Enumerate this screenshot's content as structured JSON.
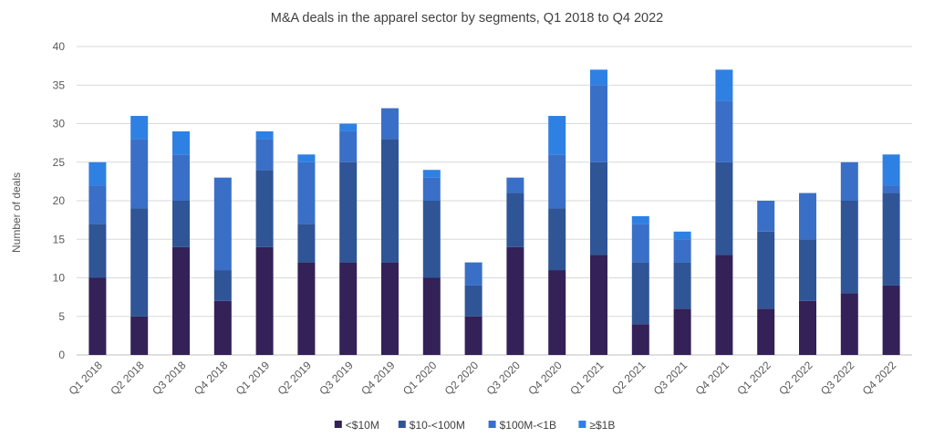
{
  "chart_data": {
    "type": "bar",
    "stacked": true,
    "title": "M&A deals in the apparel sector by segments, Q1 2018 to Q4 2022",
    "xlabel": "",
    "ylabel": "Number of deals",
    "ylim": [
      0,
      40
    ],
    "yticks": [
      0,
      5,
      10,
      15,
      20,
      25,
      30,
      35,
      40
    ],
    "grid": true,
    "legend_position": "bottom",
    "categories": [
      "Q1 2018",
      "Q2 2018",
      "Q3 2018",
      "Q4 2018",
      "Q1 2019",
      "Q2 2019",
      "Q3 2019",
      "Q4 2019",
      "Q1 2020",
      "Q2 2020",
      "Q3 2020",
      "Q4 2020",
      "Q1 2021",
      "Q2 2021",
      "Q3 2021",
      "Q4 2021",
      "Q1 2022",
      "Q2 2022",
      "Q3 2022",
      "Q4 2022"
    ],
    "series": [
      {
        "name": "<$10M",
        "color": "#332157",
        "values": [
          10,
          5,
          14,
          7,
          14,
          12,
          12,
          12,
          10,
          5,
          14,
          11,
          13,
          4,
          6,
          13,
          6,
          7,
          8,
          9
        ]
      },
      {
        "name": "$10-<100M",
        "color": "#2f5597",
        "values": [
          7,
          14,
          6,
          4,
          10,
          5,
          13,
          16,
          10,
          4,
          7,
          8,
          12,
          8,
          6,
          12,
          10,
          8,
          12,
          12
        ]
      },
      {
        "name": "$100M-<1B",
        "color": "#3a6fc8",
        "values": [
          5,
          9,
          6,
          12,
          4,
          8,
          4,
          4,
          3,
          3,
          2,
          7,
          10,
          5,
          3,
          8,
          4,
          6,
          5,
          1
        ]
      },
      {
        "name": "≥$1B",
        "color": "#2f80e3",
        "values": [
          3,
          3,
          3,
          0,
          1,
          1,
          1,
          0,
          1,
          0,
          0,
          5,
          2,
          1,
          1,
          4,
          0,
          0,
          0,
          4
        ]
      }
    ]
  }
}
